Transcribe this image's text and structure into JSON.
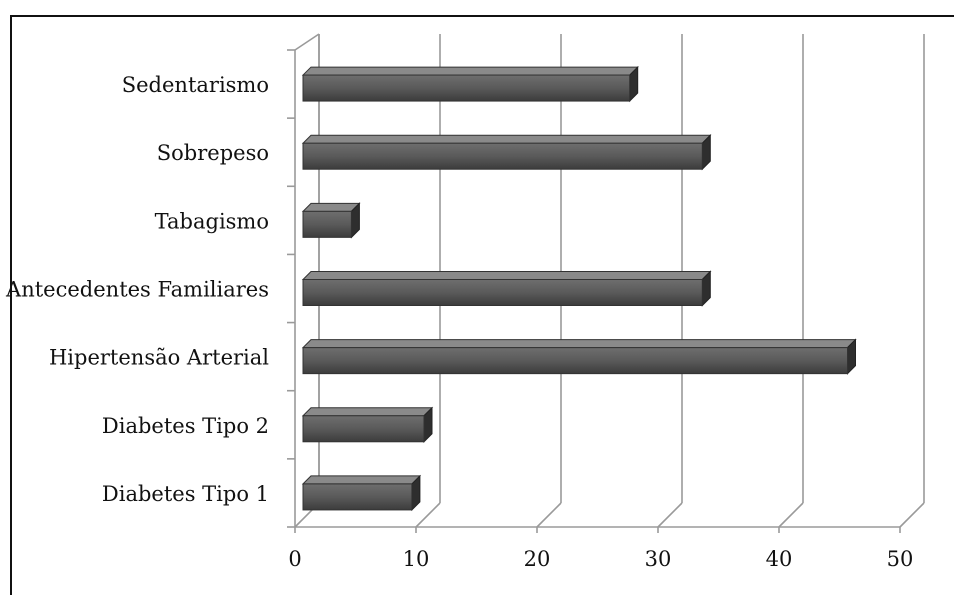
{
  "chart_data": {
    "type": "bar",
    "orientation": "horizontal",
    "style": "3d",
    "categories": [
      "Sedentarismo",
      "Sobrepeso",
      "Tabagismo",
      "Antecedentes Familiares",
      "Hipertensão Arterial",
      "Diabetes Tipo 2",
      "Diabetes Tipo 1"
    ],
    "values": [
      27,
      33,
      4,
      33,
      45,
      10,
      9
    ],
    "xlim": [
      0,
      50
    ],
    "xticks": [
      "0",
      "10",
      "20",
      "30",
      "40",
      "50"
    ],
    "grid": true,
    "bar_color": "#5a5a5a",
    "title": "",
    "xlabel": "",
    "ylabel": ""
  }
}
